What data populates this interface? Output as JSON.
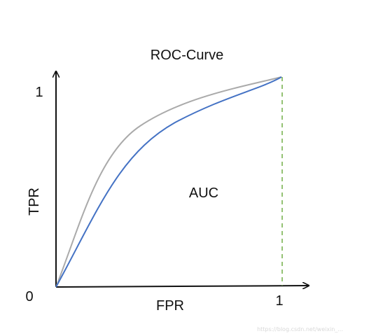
{
  "diagram": {
    "title": "ROC-Curve",
    "x_axis_label": "FPR",
    "y_axis_label": "TPR",
    "origin_label": "0",
    "x_max_label": "1",
    "y_max_label": "1",
    "area_label": "AUC",
    "watermark": "https://blog.csdn.net/weixin_..."
  },
  "colors": {
    "axis": "#111111",
    "curve_outer": "#aaaaaa",
    "curve_inner": "#4472c4",
    "dashed_line": "#70ad47"
  },
  "curves": [
    {
      "name": "outer-roc-curve",
      "color_key": "curve_outer"
    },
    {
      "name": "inner-roc-curve",
      "color_key": "curve_inner"
    }
  ]
}
